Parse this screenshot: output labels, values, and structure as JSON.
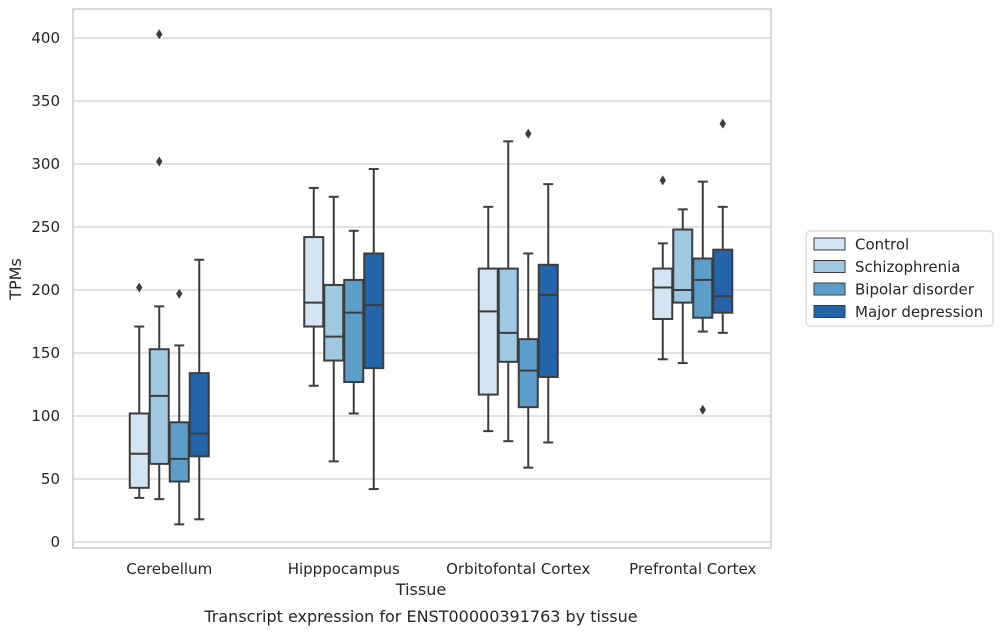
{
  "chart_data": {
    "type": "boxplot",
    "title": "",
    "xlabel": "Tissue",
    "ylabel": "TPMs",
    "caption": "Transcript expression for ENST00000391763 by tissue",
    "ylim": [
      -5,
      422
    ],
    "yticks": [
      0,
      50,
      100,
      150,
      200,
      250,
      300,
      350,
      400
    ],
    "grid": "horizontal",
    "legend_position": "right",
    "categories": [
      "Cerebellum",
      "Hipppocampus",
      "Orbitofontal Cortex",
      "Prefrontal Cortex"
    ],
    "series": [
      {
        "name": "Control",
        "color": "#d3e4f3",
        "boxes": [
          {
            "whislo": 35,
            "q1": 43,
            "med": 70,
            "q3": 102,
            "whishi": 171,
            "fliers": [
              202
            ]
          },
          {
            "whislo": 124,
            "q1": 171,
            "med": 190,
            "q3": 242,
            "whishi": 281,
            "fliers": []
          },
          {
            "whislo": 88,
            "q1": 117,
            "med": 183,
            "q3": 217,
            "whishi": 266,
            "fliers": []
          },
          {
            "whislo": 145,
            "q1": 177,
            "med": 202,
            "q3": 217,
            "whishi": 237,
            "fliers": [
              287
            ]
          }
        ]
      },
      {
        "name": "Schizophrenia",
        "color": "#9ec9e1",
        "boxes": [
          {
            "whislo": 34,
            "q1": 62,
            "med": 116,
            "q3": 153,
            "whishi": 187,
            "fliers": [
              302,
              403
            ]
          },
          {
            "whislo": 64,
            "q1": 144,
            "med": 163,
            "q3": 204,
            "whishi": 274,
            "fliers": []
          },
          {
            "whislo": 80,
            "q1": 143,
            "med": 166,
            "q3": 217,
            "whishi": 318,
            "fliers": []
          },
          {
            "whislo": 142,
            "q1": 190,
            "med": 200,
            "q3": 248,
            "whishi": 264,
            "fliers": []
          }
        ]
      },
      {
        "name": "Bipolar disorder",
        "color": "#5c9ec9",
        "boxes": [
          {
            "whislo": 14,
            "q1": 48,
            "med": 66,
            "q3": 95,
            "whishi": 156,
            "fliers": [
              197
            ]
          },
          {
            "whislo": 102,
            "q1": 127,
            "med": 182,
            "q3": 208,
            "whishi": 247,
            "fliers": []
          },
          {
            "whislo": 59,
            "q1": 107,
            "med": 136,
            "q3": 161,
            "whishi": 229,
            "fliers": [
              324
            ]
          },
          {
            "whislo": 167,
            "q1": 178,
            "med": 208,
            "q3": 225,
            "whishi": 286,
            "fliers": [
              105
            ]
          }
        ]
      },
      {
        "name": "Major depression",
        "color": "#2365a8",
        "boxes": [
          {
            "whislo": 18,
            "q1": 68,
            "med": 86,
            "q3": 134,
            "whishi": 224,
            "fliers": []
          },
          {
            "whislo": 42,
            "q1": 138,
            "med": 188,
            "q3": 229,
            "whishi": 296,
            "fliers": []
          },
          {
            "whislo": 79,
            "q1": 131,
            "med": 196,
            "q3": 220,
            "whishi": 284,
            "fliers": []
          },
          {
            "whislo": 166,
            "q1": 182,
            "med": 195,
            "q3": 232,
            "whishi": 266,
            "fliers": [
              332
            ]
          }
        ]
      }
    ]
  }
}
